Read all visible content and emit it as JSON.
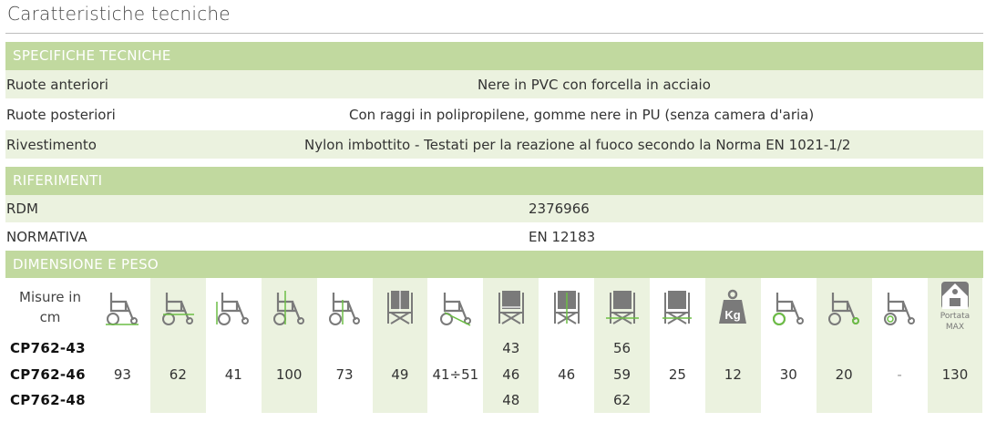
{
  "title": "Caratteristiche tecniche",
  "specifiche": {
    "header": "SPECIFICHE TECNICHE",
    "rows": [
      {
        "label": "Ruote anteriori",
        "value": "Nere in PVC con forcella in acciaio"
      },
      {
        "label": "Ruote posteriori",
        "value": "Con raggi in polipropilene, gomme nere in PU (senza camera d'aria)"
      },
      {
        "label": "Rivestimento",
        "value": "Nylon imbottito - Testati per la reazione al fuoco secondo la Norma EN 1021-1/2"
      }
    ]
  },
  "riferimenti": {
    "header": "RIFERIMENTI",
    "rows": [
      {
        "label": "RDM",
        "value": "2376966"
      },
      {
        "label": "NORMATIVA",
        "value": "EN 12183"
      }
    ]
  },
  "dimensione": {
    "header": "DIMENSIONE E PESO",
    "misure_line1": "Misure in",
    "misure_line2": "cm",
    "models": [
      "CP762-43",
      "CP762-46",
      "CP762-48"
    ],
    "portata_line1": "Portata",
    "portata_line2": "MAX",
    "columns": [
      {
        "icon": "chair-side-total-length-icon",
        "values": [
          "",
          "93",
          ""
        ]
      },
      {
        "icon": "chair-side-folded-length-icon",
        "values": [
          "",
          "62",
          ""
        ]
      },
      {
        "icon": "chair-side-seat-height-icon",
        "values": [
          "",
          "41",
          ""
        ]
      },
      {
        "icon": "chair-side-total-height-icon",
        "values": [
          "",
          "100",
          ""
        ]
      },
      {
        "icon": "chair-side-folded-height-icon",
        "values": [
          "",
          "73",
          ""
        ]
      },
      {
        "icon": "chair-front-backrest-height-icon",
        "values": [
          "",
          "49",
          ""
        ]
      },
      {
        "icon": "chair-side-seat-depth-icon",
        "values": [
          "",
          "41÷51",
          ""
        ]
      },
      {
        "icon": "chair-front-seat-width-icon",
        "values": [
          "43",
          "46",
          "48"
        ]
      },
      {
        "icon": "chair-front-backrest-width-icon",
        "values": [
          "",
          "46",
          ""
        ]
      },
      {
        "icon": "chair-front-total-width-icon",
        "values": [
          "56",
          "59",
          "62"
        ]
      },
      {
        "icon": "chair-front-folded-width-icon",
        "values": [
          "",
          "25",
          ""
        ]
      },
      {
        "icon": "kg-weight-icon",
        "values": [
          "",
          "12",
          ""
        ]
      },
      {
        "icon": "front-wheel-diameter-icon",
        "values": [
          "",
          "30",
          ""
        ]
      },
      {
        "icon": "rear-wheel-diameter-icon",
        "values": [
          "",
          "20",
          ""
        ]
      },
      {
        "icon": "pushrim-icon",
        "values": [
          "",
          "-",
          ""
        ]
      },
      {
        "icon": "max-capacity-icon",
        "values": [
          "",
          "130",
          ""
        ]
      }
    ]
  }
}
